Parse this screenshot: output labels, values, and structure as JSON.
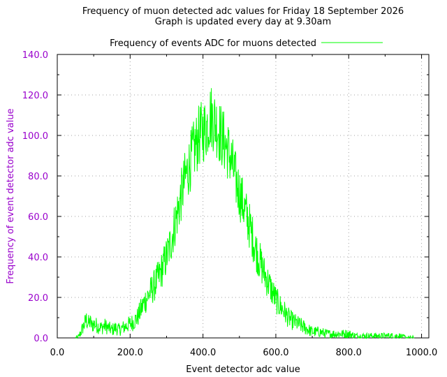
{
  "chart_data": {
    "type": "line",
    "title": "Frequency of muon detected adc values for Friday 18 September 2026",
    "subtitle": "Graph is updated every day at 9.30am",
    "xlabel": "Event detector adc value",
    "ylabel": "Frequency of event detector adc value",
    "xlim": [
      0,
      1020
    ],
    "ylim": [
      0,
      140
    ],
    "grid": true,
    "legend_position": "top-center",
    "x_ticks": [
      "0.0",
      "200.0",
      "400.0",
      "600.0",
      "800.0",
      "1000.0"
    ],
    "x_tick_values": [
      0,
      200,
      400,
      600,
      800,
      1000
    ],
    "y_ticks": [
      "0.0",
      "20.0",
      "40.0",
      "60.0",
      "80.0",
      "100.0",
      "120.0",
      "140.0"
    ],
    "y_tick_values": [
      0,
      20,
      40,
      60,
      80,
      100,
      120,
      140
    ],
    "series": [
      {
        "name": "Frequency of events ADC for muons detected",
        "color": "#00ff00",
        "x": [
          50,
          55,
          60,
          65,
          70,
          75,
          80,
          85,
          90,
          95,
          100,
          110,
          120,
          130,
          140,
          150,
          160,
          170,
          180,
          190,
          200,
          210,
          220,
          230,
          240,
          250,
          260,
          270,
          280,
          290,
          300,
          310,
          320,
          330,
          340,
          350,
          360,
          370,
          380,
          390,
          400,
          410,
          420,
          430,
          440,
          450,
          460,
          470,
          480,
          490,
          500,
          510,
          520,
          530,
          540,
          550,
          560,
          570,
          580,
          590,
          600,
          610,
          620,
          630,
          640,
          650,
          660,
          670,
          680,
          690,
          700,
          720,
          740,
          760,
          780,
          800,
          820,
          840,
          860,
          880,
          900,
          920,
          940,
          960,
          980
        ],
        "values": [
          0,
          0,
          1,
          3,
          5,
          7,
          9,
          7,
          8,
          6,
          7,
          6,
          5,
          6,
          5,
          4,
          5,
          4,
          5,
          6,
          7,
          8,
          10,
          14,
          18,
          21,
          24,
          27,
          31,
          35,
          40,
          46,
          54,
          62,
          70,
          78,
          84,
          90,
          95,
          100,
          102,
          104,
          110,
          108,
          104,
          100,
          96,
          92,
          86,
          78,
          72,
          66,
          60,
          54,
          47,
          41,
          36,
          31,
          27,
          23,
          19,
          16,
          14,
          11,
          9,
          8,
          7,
          6,
          5,
          4,
          3,
          3,
          2,
          2,
          2,
          2,
          1,
          1,
          1,
          1,
          1,
          1,
          1,
          0,
          0
        ]
      }
    ]
  },
  "colors": {
    "line": "#00ff00",
    "y_axis_text": "#9900cc",
    "axis": "#000000",
    "grid": "#a0a0a0"
  }
}
